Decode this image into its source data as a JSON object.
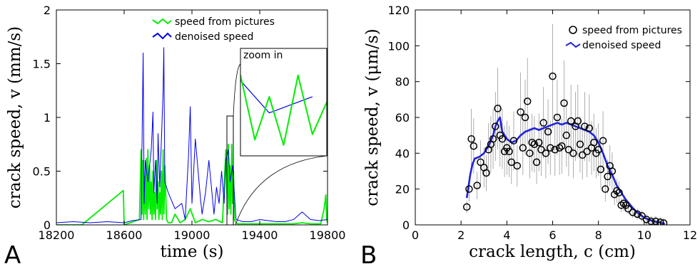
{
  "chart_data": [
    {
      "panel_label": "A",
      "type": "line",
      "xlabel": "time (s)",
      "ylabel": "crack speed, v (mm/s)",
      "xlim": [
        18200,
        19800
      ],
      "ylim": [
        0,
        2
      ],
      "xticks": [
        18200,
        18600,
        19000,
        19400,
        19800
      ],
      "xtick_labels": [
        "18200",
        "18600",
        "19000",
        "19400",
        "19800"
      ],
      "yticks": [
        0,
        0.5,
        1,
        1.5,
        2
      ],
      "ytick_labels": [
        "0",
        "0.5",
        "1",
        "1.5",
        "2"
      ],
      "legend_position": "top-center",
      "inset_label": "zoom in",
      "zoom_window": {
        "x": [
          19215,
          19245
        ],
        "y": [
          0,
          1
        ]
      },
      "series": [
        {
          "name": "speed from pictures",
          "color": "#00ee00",
          "x": [
            18200,
            18350,
            18595,
            18600,
            18690,
            18700,
            18705,
            18710,
            18715,
            18720,
            18725,
            18730,
            18735,
            18740,
            18745,
            18750,
            18755,
            18760,
            18765,
            18770,
            18775,
            18780,
            18785,
            18790,
            18795,
            18800,
            18805,
            18810,
            18815,
            18820,
            18825,
            18830,
            18835,
            18840,
            18850,
            18860,
            18880,
            18900,
            18930,
            18960,
            18990,
            19020,
            19060,
            19100,
            19140,
            19180,
            19200,
            19210,
            19215,
            19220,
            19225,
            19230,
            19235,
            19240,
            19245,
            19250,
            19260,
            19270,
            19300,
            19350,
            19400,
            19450,
            19500,
            19550,
            19600,
            19650,
            19700,
            19760,
            19780,
            19790,
            19795,
            19800
          ],
          "y": [
            0,
            0,
            0.32,
            0,
            0.05,
            0.7,
            0.1,
            0.6,
            0.05,
            0.45,
            0.1,
            0.62,
            0.05,
            0.7,
            0.15,
            0.55,
            0.1,
            0.4,
            0.05,
            0.5,
            0.1,
            0.3,
            0.05,
            0.6,
            0.15,
            0.4,
            0.05,
            0.3,
            0.1,
            0.5,
            0.05,
            0.7,
            0.1,
            0.55,
            0.05,
            0.02,
            0.02,
            0.1,
            0.02,
            0.05,
            0.15,
            0.02,
            0.05,
            0.03,
            0.05,
            0.02,
            0.7,
            0.1,
            0.75,
            0.15,
            0.55,
            0.1,
            0.75,
            0.2,
            0.5,
            0.05,
            0.02,
            0.01,
            0.01,
            0.01,
            0.01,
            0.01,
            0.01,
            0.01,
            0.01,
            0.02,
            0.01,
            0.01,
            0.15,
            0.28,
            0.05,
            0.02
          ]
        },
        {
          "name": "denoised speed",
          "color": "#0000ee",
          "x": [
            18200,
            18300,
            18400,
            18500,
            18600,
            18650,
            18700,
            18712,
            18718,
            18725,
            18740,
            18760,
            18770,
            18775,
            18785,
            18795,
            18800,
            18810,
            18830,
            18834,
            18840,
            18860,
            18900,
            18940,
            18960,
            18980,
            18990,
            19000,
            19020,
            19050,
            19060,
            19080,
            19100,
            19130,
            19145,
            19160,
            19175,
            19190,
            19200,
            19215,
            19225,
            19240,
            19260,
            19300,
            19350,
            19400,
            19450,
            19500,
            19550,
            19600,
            19650,
            19700,
            19750,
            19800
          ],
          "y": [
            0.02,
            0.03,
            0.02,
            0.03,
            0.02,
            0.04,
            0.05,
            1.6,
            0.2,
            0.6,
            0.4,
            0.7,
            1.05,
            0.3,
            0.6,
            0.2,
            0.85,
            0.35,
            1.25,
            1.65,
            0.4,
            0.3,
            0.15,
            0.2,
            0.05,
            0.65,
            1.1,
            0.2,
            0.8,
            0.25,
            0.1,
            0.3,
            0.6,
            0.1,
            0.35,
            0.2,
            0.5,
            0.2,
            0.6,
            0.7,
            0.4,
            0.55,
            0.05,
            0.03,
            0.03,
            0.05,
            0.04,
            0.03,
            0.03,
            0.05,
            0.12,
            0.05,
            0.04,
            0.05
          ]
        }
      ]
    },
    {
      "panel_label": "B",
      "type": "scatter",
      "xlabel": "crack length, c (cm)",
      "ylabel": "crack speed, v (μm/s)",
      "xlim": [
        0,
        12
      ],
      "ylim": [
        0,
        120
      ],
      "xticks": [
        0,
        2,
        4,
        6,
        8,
        10,
        12
      ],
      "xtick_labels": [
        "0",
        "2",
        "4",
        "6",
        "8",
        "10",
        "12"
      ],
      "yticks": [
        0,
        20,
        40,
        60,
        80,
        100,
        120
      ],
      "ytick_labels": [
        "0",
        "20",
        "40",
        "60",
        "80",
        "100",
        "120"
      ],
      "legend_position": "top-right",
      "series": [
        {
          "name": "speed from pictures",
          "color": "#000000",
          "x": [
            2.25,
            2.35,
            2.45,
            2.55,
            2.7,
            2.85,
            3.0,
            3.1,
            3.2,
            3.3,
            3.4,
            3.5,
            3.6,
            3.7,
            3.8,
            3.9,
            4.0,
            4.1,
            4.2,
            4.3,
            4.45,
            4.6,
            4.7,
            4.8,
            4.9,
            5.0,
            5.1,
            5.2,
            5.3,
            5.4,
            5.5,
            5.6,
            5.7,
            5.8,
            5.9,
            6.0,
            6.1,
            6.2,
            6.3,
            6.4,
            6.5,
            6.6,
            6.7,
            6.8,
            6.9,
            7.0,
            7.1,
            7.2,
            7.3,
            7.4,
            7.5,
            7.6,
            7.7,
            7.8,
            7.9,
            8.0,
            8.1,
            8.2,
            8.3,
            8.4,
            8.5,
            8.6,
            8.7,
            8.8,
            8.9,
            9.0,
            9.1,
            9.2,
            9.3,
            9.5,
            9.7,
            9.9,
            10.1,
            10.3,
            10.5,
            10.7,
            10.85
          ],
          "y": [
            10,
            20,
            48,
            44,
            22,
            35,
            32,
            29,
            42,
            45,
            48,
            55,
            65,
            50,
            48,
            41,
            43,
            41,
            35,
            47,
            33,
            63,
            43,
            60,
            69,
            40,
            46,
            45,
            35,
            46,
            42,
            57,
            40,
            52,
            43,
            83,
            42,
            60,
            43,
            44,
            68,
            50,
            42,
            58,
            40,
            55,
            58,
            45,
            39,
            55,
            41,
            54,
            43,
            46,
            40,
            42,
            31,
            47,
            20,
            27,
            33,
            30,
            17,
            19,
            18,
            11,
            12,
            11,
            9,
            7,
            6,
            5,
            3,
            2,
            2,
            1.5,
            1
          ]
        },
        {
          "name": "denoised speed",
          "color": "#2222dd",
          "x": [
            2.25,
            2.4,
            2.5,
            2.6,
            2.8,
            3.0,
            3.2,
            3.4,
            3.5,
            3.6,
            3.7,
            3.8,
            4.0,
            4.2,
            4.4,
            4.6,
            4.8,
            5.0,
            5.2,
            5.4,
            5.6,
            5.8,
            6.0,
            6.2,
            6.4,
            6.6,
            6.8,
            7.0,
            7.2,
            7.4,
            7.6,
            7.8,
            8.0,
            8.2,
            8.4,
            8.6,
            8.8,
            9.0,
            9.2,
            9.4,
            9.6,
            9.8,
            10.0,
            10.2,
            10.4,
            10.6,
            10.8,
            10.9
          ],
          "y": [
            15,
            28,
            34,
            37,
            38,
            40,
            44,
            50,
            55,
            58,
            60,
            52,
            48,
            46,
            47,
            50,
            52,
            53,
            54,
            53,
            54,
            55,
            56,
            57,
            56,
            57,
            56,
            55,
            54,
            53,
            52,
            50,
            46,
            40,
            33,
            28,
            22,
            18,
            14,
            11,
            8,
            6,
            4,
            3,
            2,
            1.5,
            1,
            0.5
          ]
        }
      ]
    }
  ]
}
